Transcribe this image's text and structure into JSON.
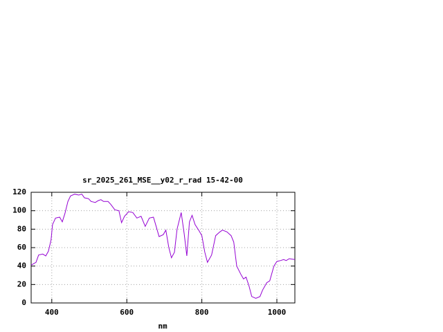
{
  "chart_data": {
    "type": "line",
    "title": "sr_2025_261_MSE__y02_r_rad 15-42-00",
    "x_label": "nm",
    "xlim": [
      345,
      1048
    ],
    "ylim": [
      0,
      120
    ],
    "xticks": [
      400,
      600,
      800,
      1000
    ],
    "yticks": [
      0,
      20,
      40,
      60,
      80,
      100,
      120
    ],
    "grid": true,
    "series": [
      {
        "color": "#9400d3",
        "x": [
          345,
          358,
          365,
          376,
          384,
          391,
          398,
          402,
          410,
          421,
          428,
          435,
          443,
          450,
          461,
          472,
          480,
          487,
          498,
          505,
          516,
          524,
          531,
          538,
          550,
          557,
          568,
          579,
          586,
          594,
          605,
          616,
          627,
          638,
          649,
          660,
          671,
          679,
          686,
          697,
          704,
          712,
          719,
          727,
          734,
          745,
          753,
          760,
          767,
          774,
          782,
          793,
          800,
          808,
          815,
          826,
          837,
          848,
          855,
          867,
          878,
          885,
          893,
          904,
          911,
          918,
          926,
          933,
          944,
          955,
          962,
          973,
          981,
          992,
          1000,
          1010,
          1018,
          1025,
          1033,
          1048
        ],
        "values": [
          41,
          44,
          52,
          53,
          51,
          56,
          68,
          85,
          92,
          93,
          88,
          97,
          110,
          116,
          118,
          117,
          118,
          114,
          113,
          110,
          109,
          111,
          112,
          110,
          110,
          107,
          101,
          100,
          87,
          94,
          99,
          98,
          92,
          94,
          83,
          92,
          93,
          82,
          72,
          74,
          79,
          60,
          49,
          55,
          80,
          98,
          75,
          51,
          88,
          95,
          85,
          78,
          73,
          55,
          44,
          52,
          73,
          77,
          79,
          77,
          73,
          66,
          40,
          31,
          26,
          28,
          18,
          7,
          5,
          7,
          14,
          22,
          24,
          40,
          45,
          46,
          47,
          46,
          48,
          47
        ]
      }
    ]
  }
}
